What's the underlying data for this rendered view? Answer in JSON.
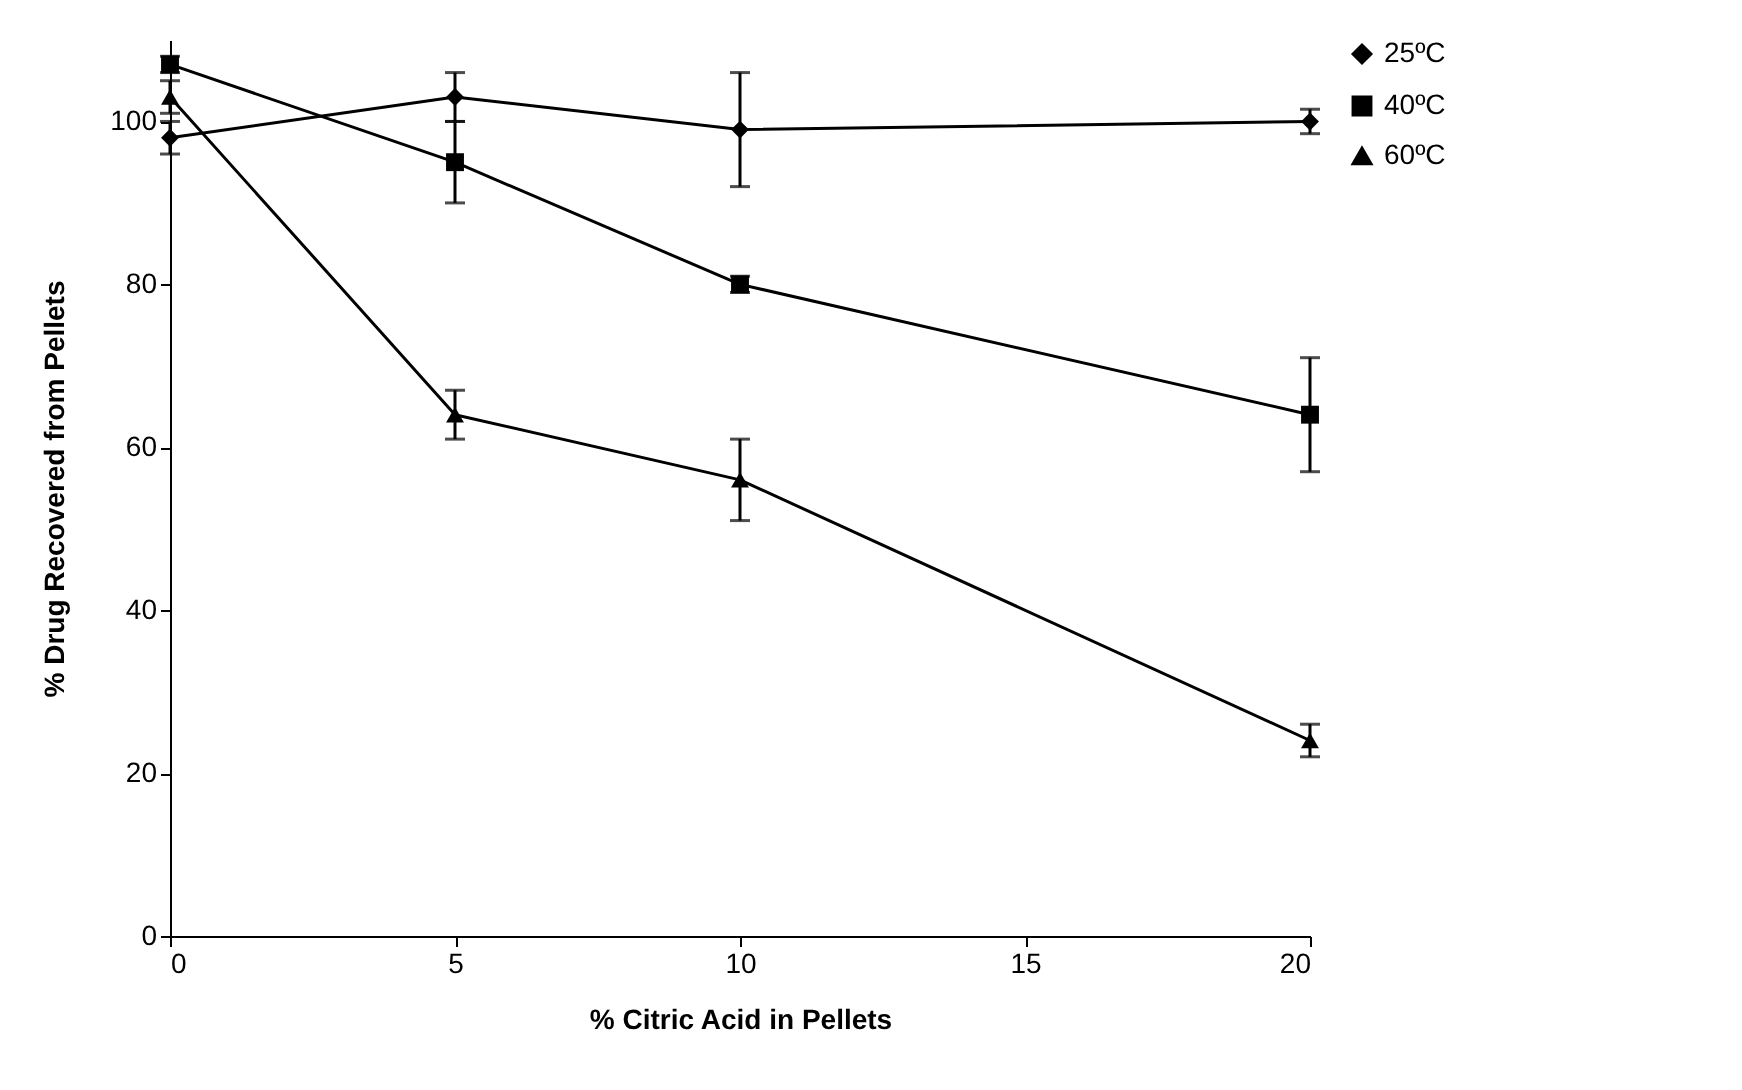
{
  "chart_data": {
    "type": "line",
    "xlabel": "% Citric Acid in Pellets",
    "ylabel": "% Drug Recovered from Pellets",
    "xlim": [
      0,
      20
    ],
    "xticks": [
      0,
      5,
      10,
      15,
      20
    ],
    "ylim": [
      0,
      110
    ],
    "yticks": [
      0,
      20,
      40,
      60,
      80,
      100
    ],
    "x": [
      0,
      5,
      10,
      20
    ],
    "grid": false,
    "legend": "right",
    "series": [
      {
        "name": "25ºC",
        "color": "#000000",
        "marker": "diamond",
        "values": [
          98,
          103,
          99,
          100
        ],
        "errors": [
          2,
          3,
          7,
          1.5
        ]
      },
      {
        "name": "40ºC",
        "color": "#000000",
        "marker": "square",
        "values": [
          107,
          95,
          80,
          64
        ],
        "errors": [
          1,
          5,
          1,
          7
        ]
      },
      {
        "name": "60ºC",
        "color": "#000000",
        "marker": "triangle",
        "values": [
          103,
          64,
          56,
          24
        ],
        "errors": [
          2,
          3,
          5,
          2
        ]
      }
    ]
  }
}
